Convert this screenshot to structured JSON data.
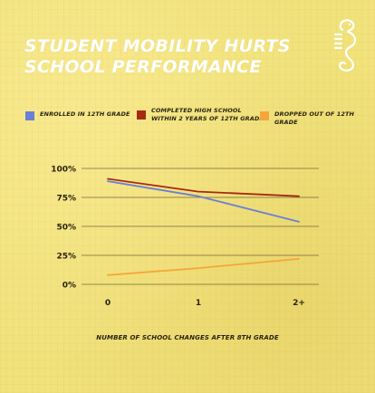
{
  "title_lines": [
    "Student Mobility Hurts",
    "School Performance"
  ],
  "colors": {
    "background": "#f1e27c",
    "title": "#ffffff",
    "gridline": "#4a4028",
    "text": "#2a2410"
  },
  "logo": {
    "icon": "seahorse-logo-icon"
  },
  "chart_data": {
    "type": "line",
    "x": [
      "0",
      "1",
      "2+"
    ],
    "series": [
      {
        "name": "Enrolled in 12th grade",
        "color": "#6a7fd8",
        "values": [
          89,
          76,
          54
        ]
      },
      {
        "name": "Completed high school\nwithin 2 years of 12th grade",
        "color": "#a62a12",
        "values": [
          91,
          80,
          76
        ]
      },
      {
        "name": "Dropped out of 12th grade",
        "color": "#f5a63a",
        "values": [
          8,
          14,
          22
        ]
      }
    ],
    "yticks": [
      "100%",
      "75%",
      "50%",
      "25%",
      "0%"
    ],
    "ylim": [
      0,
      100
    ],
    "xlabel": "Number of school changes after 8th grade",
    "ylabel": "",
    "grid": true,
    "legend": "top"
  }
}
